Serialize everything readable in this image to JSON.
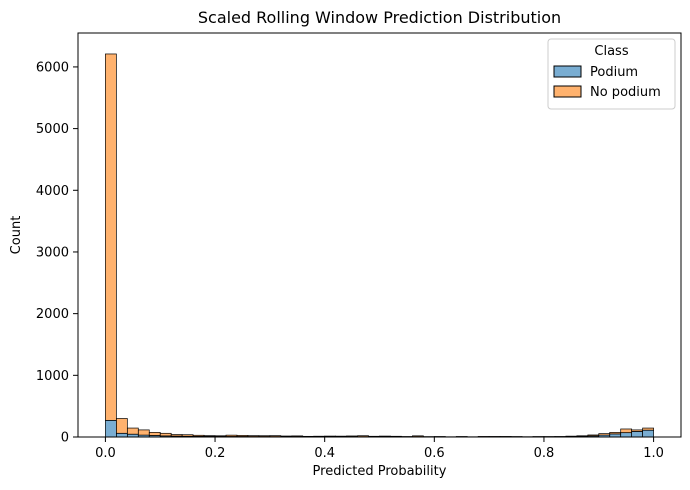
{
  "chart_data": {
    "type": "histogram",
    "stacked": true,
    "title": "Scaled Rolling Window Prediction Distribution",
    "xlabel": "Predicted Probability",
    "ylabel": "Count",
    "xlim": [
      -0.05,
      1.05
    ],
    "ylim": [
      0,
      6550
    ],
    "xticks": [
      0.0,
      0.2,
      0.4,
      0.6,
      0.8,
      1.0
    ],
    "xtick_labels": [
      "0.0",
      "0.2",
      "0.4",
      "0.6",
      "0.8",
      "1.0"
    ],
    "yticks": [
      0,
      1000,
      2000,
      3000,
      4000,
      5000,
      6000
    ],
    "ytick_labels": [
      "0",
      "1000",
      "2000",
      "3000",
      "4000",
      "5000",
      "6000"
    ],
    "grid": false,
    "bin_start": 0.0,
    "bin_width": 0.02,
    "legend": {
      "title": "Class",
      "placement": "top-right"
    },
    "series": [
      {
        "name": "Podium",
        "color": "#1f77b4",
        "values": [
          270,
          60,
          45,
          30,
          25,
          18,
          15,
          12,
          10,
          10,
          8,
          8,
          8,
          7,
          7,
          6,
          6,
          6,
          5,
          5,
          5,
          5,
          5,
          5,
          5,
          5,
          4,
          4,
          5,
          4,
          4,
          4,
          4,
          4,
          4,
          4,
          5,
          5,
          5,
          5,
          5,
          6,
          8,
          12,
          18,
          30,
          50,
          70,
          90,
          110
        ]
      },
      {
        "name": "No podium",
        "color": "#ff7f0e",
        "values": [
          5940,
          240,
          100,
          85,
          50,
          42,
          25,
          25,
          18,
          12,
          12,
          22,
          18,
          15,
          14,
          16,
          10,
          12,
          6,
          8,
          10,
          9,
          12,
          16,
          7,
          10,
          8,
          4,
          14,
          2,
          4,
          0,
          4,
          0,
          5,
          5,
          4,
          2,
          0,
          2,
          2,
          2,
          6,
          8,
          15,
          25,
          25,
          60,
          25,
          35
        ]
      }
    ]
  }
}
